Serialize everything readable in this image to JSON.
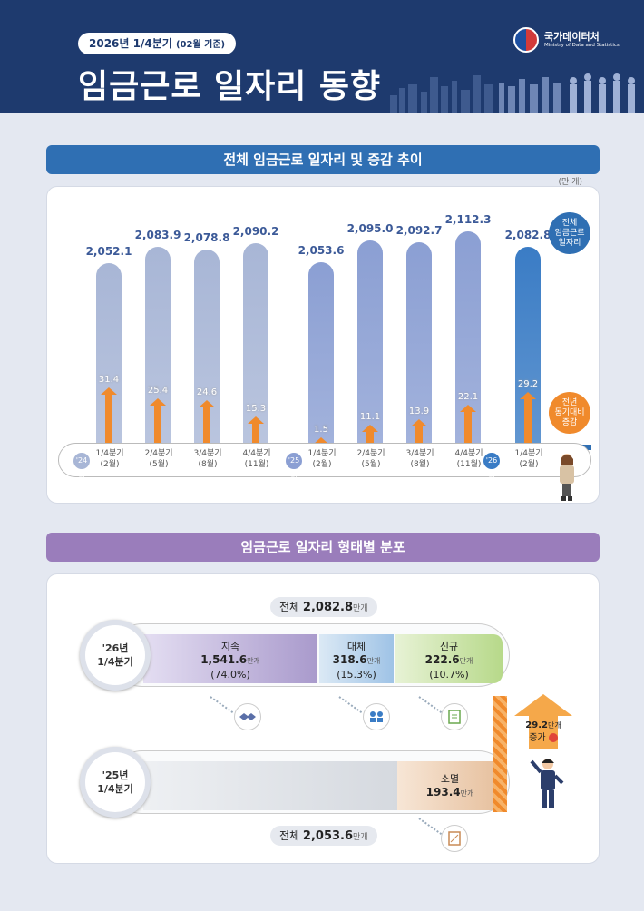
{
  "header": {
    "tag_main": "2026년 1/4분기",
    "tag_sub": "(02월 기준)",
    "title": "임금근로 일자리 동향",
    "org_ko": "국가데이터처",
    "org_en": "Ministry of Data and Statistics"
  },
  "section1": {
    "title": "전체 임금근로 일자리 및 증감 추이",
    "unit": "(만 개)",
    "legend_total": [
      "전체",
      "임금근로",
      "일자리"
    ],
    "legend_change": [
      "전년",
      "동기대비",
      "증감"
    ]
  },
  "section2": {
    "title": "임금근로 일자리 형태별 분포"
  },
  "colors": {
    "header": "#1e3a6e",
    "sec1_title": "#2f6fb3",
    "sec2_title": "#9a7dbb",
    "bar_2024": "#a8b6d6",
    "bar_2025": "#8b9fd3",
    "bar_2026": "#3a7cc5",
    "arrow": "#f08a2c"
  },
  "chart_data": [
    {
      "type": "bar",
      "title": "전체 임금근로 일자리 및 증감 추이",
      "unit": "만 개",
      "categories": [
        "1/4분기 (2월)",
        "2/4분기 (5월)",
        "3/4분기 (8월)",
        "4/4분기 (11월)",
        "1/4분기 (2월)",
        "2/4분기 (5월)",
        "3/4분기 (8월)",
        "4/4분기 (11월)",
        "1/4분기 (2월)"
      ],
      "category_lines": [
        [
          "1/4분기",
          "(2월)"
        ],
        [
          "2/4분기",
          "(5월)"
        ],
        [
          "3/4분기",
          "(8월)"
        ],
        [
          "4/4분기",
          "(11월)"
        ],
        [
          "1/4분기",
          "(2월)"
        ],
        [
          "2/4분기",
          "(5월)"
        ],
        [
          "3/4분기",
          "(8월)"
        ],
        [
          "4/4분기",
          "(11월)"
        ],
        [
          "1/4분기",
          "(2월)"
        ]
      ],
      "years": [
        {
          "label": "'24년",
          "start": 0
        },
        {
          "label": "'25년",
          "start": 4
        },
        {
          "label": "'26년",
          "start": 8
        }
      ],
      "series": [
        {
          "name": "전체 임금근로 일자리",
          "values": [
            2052.1,
            2083.9,
            2078.8,
            2090.2,
            2053.6,
            2095.0,
            2092.7,
            2112.3,
            2082.8
          ],
          "labels": [
            "2,052.1",
            "2,083.9",
            "2,078.8",
            "2,090.2",
            "2,053.6",
            "2,095.0",
            "2,092.7",
            "2,112.3",
            "2,082.8"
          ]
        },
        {
          "name": "전년 동기대비 증감",
          "values": [
            31.4,
            25.4,
            24.6,
            15.3,
            1.5,
            11.1,
            13.9,
            22.1,
            29.2
          ],
          "labels": [
            "31.4",
            "25.4",
            "24.6",
            "15.3",
            "1.5",
            "11.1",
            "13.9",
            "22.1",
            "29.2"
          ]
        }
      ]
    },
    {
      "type": "bar",
      "title": "임금근로 일자리 형태별 분포",
      "unit": "만개",
      "rows": [
        {
          "period": [
            "'26년",
            "1/4분기"
          ],
          "total_label": "전체",
          "total": "2,082.8",
          "total_unit": "만개",
          "segments": [
            {
              "name": "지속",
              "value": 1541.6,
              "value_label": "1,541.6",
              "unit": "만개",
              "share": "(74.0%)"
            },
            {
              "name": "대체",
              "value": 318.6,
              "value_label": "318.6",
              "unit": "만개",
              "share": "(15.3%)"
            },
            {
              "name": "신규",
              "value": 222.6,
              "value_label": "222.6",
              "unit": "만개",
              "share": "(10.7%)"
            }
          ]
        },
        {
          "period": [
            "'25년",
            "1/4분기"
          ],
          "total_label": "전체",
          "total": "2,053.6",
          "total_unit": "만개",
          "segments": [
            {
              "name": "",
              "value": 1860.2,
              "value_label": "",
              "unit": "",
              "share": ""
            },
            {
              "name": "소멸",
              "value": 193.4,
              "value_label": "193.4",
              "unit": "만개",
              "share": ""
            }
          ]
        }
      ],
      "increase": {
        "value": "29.2",
        "unit": "만개",
        "label": "증가"
      }
    }
  ]
}
